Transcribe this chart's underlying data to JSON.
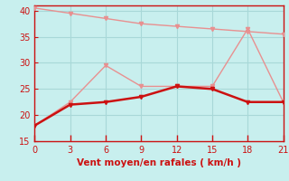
{
  "xlabel": "Vent moyen/en rafales ( km/h )",
  "background_color": "#c8efee",
  "grid_color": "#a8d8d8",
  "line1_color": "#e89090",
  "line2_color": "#cc1111",
  "line_gust_color": "#e89090",
  "line1_x": [
    0,
    3,
    6,
    9,
    12,
    15,
    18,
    21
  ],
  "line1_y": [
    40.5,
    39.5,
    38.5,
    37.5,
    37.0,
    36.5,
    36.0,
    35.5
  ],
  "line2_x": [
    0,
    3,
    6,
    9,
    12,
    15,
    18,
    21
  ],
  "line2_y": [
    18.0,
    22.5,
    29.5,
    25.5,
    25.5,
    25.5,
    36.5,
    22.5
  ],
  "line3_x": [
    0,
    3,
    6,
    9,
    12,
    15,
    18,
    21
  ],
  "line3_y": [
    18.0,
    22.0,
    22.5,
    23.5,
    25.5,
    25.0,
    22.5,
    22.5
  ],
  "xlim": [
    0,
    21
  ],
  "ylim": [
    15,
    41
  ],
  "xticks": [
    0,
    3,
    6,
    9,
    12,
    15,
    18,
    21
  ],
  "yticks": [
    15,
    20,
    25,
    30,
    35,
    40
  ],
  "tick_color": "#cc1111",
  "axis_label_color": "#cc1111",
  "marker": "v",
  "marker_size": 3
}
